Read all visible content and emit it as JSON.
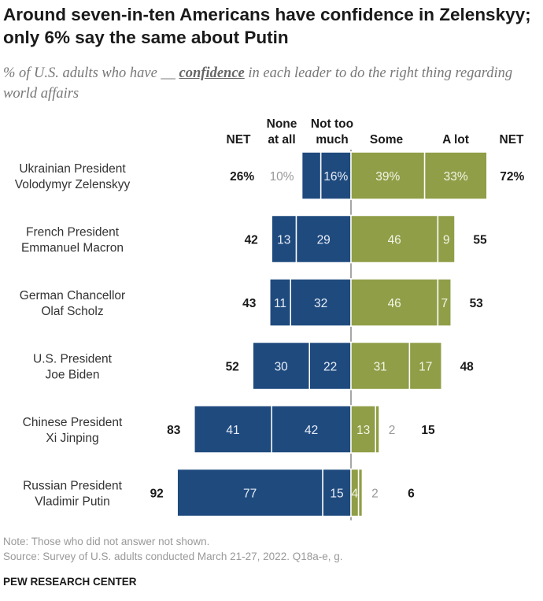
{
  "title": "Around seven-in-ten Americans have confidence in Zelenskyy; only 6% say the same about Putin",
  "subtitle": {
    "before": "% of U.S. adults who have __ ",
    "emphasis": "confidence",
    "after": " in each leader to do the right thing regarding world affairs"
  },
  "chart_data": {
    "type": "bar",
    "orientation": "horizontal-diverging",
    "column_headers": [
      "NET",
      "None at all",
      "Not too much",
      "Some",
      "A lot",
      "NET"
    ],
    "categories": [
      [
        "Ukrainian President",
        "Volodymyr Zelenskyy"
      ],
      [
        "French President",
        "Emmanuel Macron"
      ],
      [
        "German Chancellor",
        "Olaf Scholz"
      ],
      [
        "U.S. President",
        "Joe Biden"
      ],
      [
        "Chinese President",
        "Xi Jinping"
      ],
      [
        "Russian President",
        "Vladimir Putin"
      ]
    ],
    "series": [
      {
        "name": "None at all",
        "values": [
          10,
          13,
          11,
          30,
          41,
          77
        ],
        "labels": [
          "10%",
          "13",
          "11",
          "30",
          "41",
          "77"
        ],
        "color": "#1f4a7e",
        "side": "negative"
      },
      {
        "name": "Not too much",
        "values": [
          16,
          29,
          32,
          22,
          42,
          15
        ],
        "labels": [
          "16%",
          "29",
          "32",
          "22",
          "42",
          "15"
        ],
        "color": "#1f4a7e",
        "side": "negative"
      },
      {
        "name": "Some",
        "values": [
          39,
          46,
          46,
          31,
          13,
          4
        ],
        "labels": [
          "39%",
          "46",
          "46",
          "31",
          "13",
          "4"
        ],
        "color": "#8f9e47",
        "side": "positive"
      },
      {
        "name": "A lot",
        "values": [
          33,
          9,
          7,
          17,
          2,
          2
        ],
        "labels": [
          "33%",
          "9",
          "7",
          "17",
          "2",
          "2"
        ],
        "color": "#8f9e47",
        "side": "positive"
      }
    ],
    "net_negative": [
      "26%",
      "42",
      "43",
      "52",
      "83",
      "92"
    ],
    "net_positive": [
      "72%",
      "55",
      "53",
      "48",
      "15",
      "6"
    ]
  },
  "footer": {
    "note": "Note: Those who did not answer not shown.",
    "source": "Source: Survey of U.S. adults conducted March 21-27, 2022. Q18a-e, g.",
    "brand": "PEW RESEARCH CENTER"
  }
}
